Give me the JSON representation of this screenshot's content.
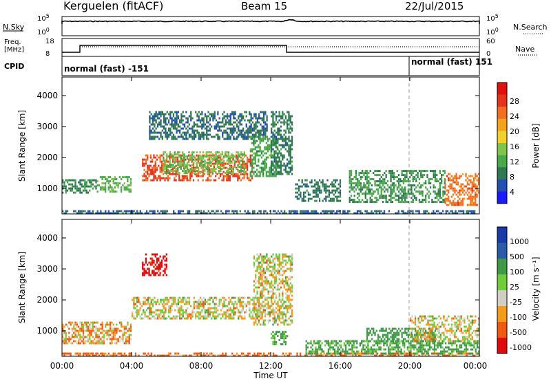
{
  "header": {
    "station": "Kerguelen (fitACF)",
    "beam": "Beam 15",
    "date": "22/Jul/2015"
  },
  "noise_panel": {
    "label": "N.Sky",
    "right_label": "N.Search",
    "ticks_left": [
      "10^5",
      "10^0"
    ],
    "ticks_right": [
      "10^5",
      "10^0"
    ]
  },
  "freq_panel": {
    "label_line1": "Freq.",
    "label_line2": "[MHz]",
    "ticks_left": [
      "18",
      "8"
    ],
    "right_label": "Nave",
    "ticks_right": [
      "60",
      "0"
    ]
  },
  "cpid_panel": {
    "label": "CPID",
    "modes": [
      "normal (fast) -151",
      "normal (fast) 151"
    ]
  },
  "time_axis": {
    "ticks": [
      "00:00",
      "04:00",
      "08:00",
      "12:00",
      "16:00",
      "20:00",
      "00:00"
    ],
    "label": "Time UT"
  },
  "power_colorbar": {
    "label": "Power [dB]",
    "ticks": [
      "28",
      "24",
      "20",
      "16",
      "12",
      "8",
      "4"
    ]
  },
  "velocity_colorbar": {
    "label": "Velocity [m s⁻¹]",
    "ticks": [
      "1000",
      "500",
      "100",
      "25",
      "-25",
      "-100",
      "-500",
      "-1000"
    ]
  },
  "chart_data": [
    {
      "type": "heatmap",
      "name": "power",
      "ylabel": "Slant Range [km]",
      "xlabel": "Time UT",
      "xlim": [
        0,
        24
      ],
      "ylim": [
        180,
        4600
      ],
      "yticks": [
        1000,
        2000,
        3000,
        4000
      ],
      "zlim": [
        0,
        32
      ],
      "colorscale": [
        "#1a1aff",
        "#234fb3",
        "#2e7a50",
        "#49a848",
        "#7fc44b",
        "#f0d12b",
        "#f5a21e",
        "#f07020",
        "#e4321c",
        "#e0100e"
      ],
      "regions": [
        {
          "t": [
            0.0,
            24.0
          ],
          "r": [
            180,
            300
          ],
          "value": 6
        },
        {
          "t": [
            0.0,
            2.0
          ],
          "r": [
            900,
            1300
          ],
          "value": 9
        },
        {
          "t": [
            2.0,
            4.0
          ],
          "r": [
            900,
            1400
          ],
          "value": 12
        },
        {
          "t": [
            4.6,
            10.9
          ],
          "r": [
            1300,
            2100
          ],
          "value": 26
        },
        {
          "t": [
            5.8,
            10.5
          ],
          "r": [
            1500,
            2200
          ],
          "value": 13
        },
        {
          "t": [
            5.0,
            11.8
          ],
          "r": [
            2600,
            3500
          ],
          "value": 7
        },
        {
          "t": [
            10.8,
            12.4
          ],
          "r": [
            1400,
            2700
          ],
          "value": 11
        },
        {
          "t": [
            12.0,
            13.2
          ],
          "r": [
            1500,
            3500
          ],
          "value": 8
        },
        {
          "t": [
            13.4,
            16.0
          ],
          "r": [
            600,
            1300
          ],
          "value": 8
        },
        {
          "t": [
            16.5,
            22.0
          ],
          "r": [
            600,
            1600
          ],
          "value": 10
        },
        {
          "t": [
            22.0,
            24.0
          ],
          "r": [
            500,
            1500
          ],
          "value": 24
        }
      ]
    },
    {
      "type": "heatmap",
      "name": "velocity",
      "ylabel": "Slant Range [km]",
      "xlabel": "Time UT",
      "xlim": [
        0,
        24
      ],
      "ylim": [
        180,
        4600
      ],
      "yticks": [
        1000,
        2000,
        3000,
        4000
      ],
      "zlim": [
        -1000,
        1000
      ],
      "colorscale": [
        "#e00a0a",
        "#ee5a12",
        "#f39c1c",
        "#cfcfc8",
        "#6fcd3a",
        "#3f9a48",
        "#2a5aa8",
        "#1a3aa8"
      ],
      "regions": [
        {
          "t": [
            0.0,
            24.0
          ],
          "r": [
            180,
            300
          ],
          "value": -150
        },
        {
          "t": [
            0.0,
            4.0
          ],
          "r": [
            600,
            1300
          ],
          "value": -60
        },
        {
          "t": [
            4.0,
            11.5
          ],
          "r": [
            1400,
            2100
          ],
          "value": 0
        },
        {
          "t": [
            4.6,
            6.0
          ],
          "r": [
            2800,
            3500
          ],
          "value": -600
        },
        {
          "t": [
            11.0,
            13.2
          ],
          "r": [
            1200,
            3500
          ],
          "value": 0
        },
        {
          "t": [
            12.0,
            13.0
          ],
          "r": [
            600,
            1000
          ],
          "value": 150
        },
        {
          "t": [
            14.0,
            24.0
          ],
          "r": [
            300,
            700
          ],
          "value": 150
        },
        {
          "t": [
            17.5,
            21.5
          ],
          "r": [
            700,
            1100
          ],
          "value": 300
        },
        {
          "t": [
            20.0,
            24.0
          ],
          "r": [
            700,
            1500
          ],
          "value": 0
        }
      ]
    }
  ]
}
